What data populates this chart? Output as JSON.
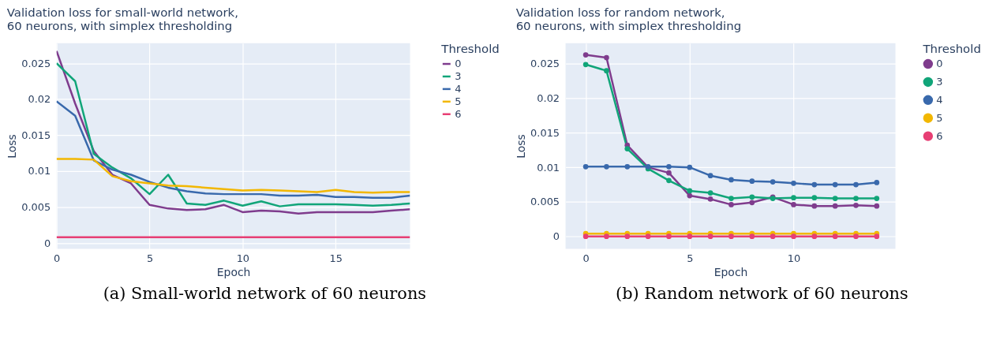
{
  "chart_data": [
    {
      "type": "line",
      "title": "Validation loss for small-world network,\n60 neurons, with simplex thresholding",
      "xlabel": "Epoch",
      "ylabel": "Loss",
      "legend_title": "Threshold",
      "legend": "right",
      "grid": true,
      "line_style": "solid",
      "x": [
        0,
        1,
        2,
        3,
        4,
        5,
        6,
        7,
        8,
        9,
        10,
        11,
        12,
        13,
        14,
        15,
        16,
        17,
        18,
        19
      ],
      "xlim": [
        0,
        19
      ],
      "xticks": [
        0,
        5,
        10,
        15
      ],
      "ylim": [
        -0.0008,
        0.0278
      ],
      "yticks": [
        0,
        0.005,
        0.01,
        0.015,
        0.02,
        0.025
      ],
      "series": [
        {
          "name": "0",
          "color": "#7f3c8d",
          "values": [
            0.0267,
            0.0194,
            0.0128,
            0.0095,
            0.0083,
            0.0053,
            0.0048,
            0.0046,
            0.0047,
            0.0053,
            0.0043,
            0.0045,
            0.0044,
            0.0041,
            0.0043,
            0.0043,
            0.0043,
            0.0043,
            0.0045,
            0.0047
          ]
        },
        {
          "name": "3",
          "color": "#11a579",
          "values": [
            0.025,
            0.0225,
            0.0124,
            0.0105,
            0.009,
            0.0068,
            0.0095,
            0.0055,
            0.0053,
            0.0059,
            0.0052,
            0.0058,
            0.0051,
            0.0054,
            0.0054,
            0.0054,
            0.0053,
            0.0052,
            0.0053,
            0.0055
          ]
        },
        {
          "name": "4",
          "color": "#3969ac",
          "values": [
            0.0197,
            0.0177,
            0.0115,
            0.0102,
            0.0095,
            0.0085,
            0.0077,
            0.0072,
            0.0069,
            0.0068,
            0.0068,
            0.0068,
            0.0066,
            0.0066,
            0.0067,
            0.0064,
            0.0064,
            0.0063,
            0.0063,
            0.0066
          ]
        },
        {
          "name": "5",
          "color": "#f2b701",
          "values": [
            0.0117,
            0.0117,
            0.0116,
            0.0093,
            0.0086,
            0.0083,
            0.008,
            0.0079,
            0.0077,
            0.0075,
            0.0073,
            0.0074,
            0.0073,
            0.0072,
            0.0071,
            0.0074,
            0.0071,
            0.007,
            0.0071,
            0.0071
          ]
        },
        {
          "name": "6",
          "color": "#e73f74",
          "values": [
            0.0008,
            0.0008,
            0.0008,
            0.0008,
            0.0008,
            0.0008,
            0.0008,
            0.0008,
            0.0008,
            0.0008,
            0.0008,
            0.0008,
            0.0008,
            0.0008,
            0.0008,
            0.0008,
            0.0008,
            0.0008,
            0.0008,
            0.0008
          ]
        }
      ],
      "annotations": [
        "(a) Small-world network of 60 neurons"
      ]
    },
    {
      "type": "line",
      "title": "Validation loss for random network,\n60 neurons, with simplex thresholding",
      "xlabel": "Epoch",
      "ylabel": "Loss",
      "legend_title": "Threshold",
      "legend": "right",
      "grid": true,
      "line_style": "solid",
      "marker": "circle",
      "x": [
        0,
        1,
        2,
        3,
        4,
        5,
        6,
        7,
        8,
        9,
        10,
        11,
        12,
        13,
        14
      ],
      "xlim": [
        -0.97,
        14.9
      ],
      "xticks": [
        0,
        5,
        10
      ],
      "ylim": [
        -0.0018,
        0.028
      ],
      "yticks": [
        0,
        0.005,
        0.01,
        0.015,
        0.02,
        0.025
      ],
      "series": [
        {
          "name": "0",
          "color": "#7f3c8d",
          "values": [
            0.0263,
            0.0259,
            0.0132,
            0.01,
            0.0092,
            0.0059,
            0.0054,
            0.0046,
            0.0049,
            0.0057,
            0.0046,
            0.0044,
            0.0044,
            0.0045,
            0.0044
          ]
        },
        {
          "name": "3",
          "color": "#11a579",
          "values": [
            0.0249,
            0.024,
            0.0127,
            0.0098,
            0.0081,
            0.0066,
            0.0063,
            0.0055,
            0.0057,
            0.0055,
            0.0056,
            0.0056,
            0.0055,
            0.0055,
            0.0055
          ]
        },
        {
          "name": "4",
          "color": "#3969ac",
          "values": [
            0.0101,
            0.0101,
            0.0101,
            0.0101,
            0.0101,
            0.01,
            0.0088,
            0.0082,
            0.008,
            0.0079,
            0.0077,
            0.0075,
            0.0075,
            0.0075,
            0.0078
          ]
        },
        {
          "name": "5",
          "color": "#f2b701",
          "values": [
            0.0004,
            0.0004,
            0.0004,
            0.0004,
            0.0004,
            0.0004,
            0.0004,
            0.0004,
            0.0004,
            0.0004,
            0.0004,
            0.0004,
            0.0004,
            0.0004,
            0.0004
          ]
        },
        {
          "name": "6",
          "color": "#e73f74",
          "values": [
            0,
            0,
            0,
            0,
            0,
            0,
            0,
            0,
            0,
            0,
            0,
            0,
            0,
            0,
            0
          ]
        }
      ],
      "annotations": [
        "(b) Random network of 60 neurons"
      ]
    }
  ]
}
